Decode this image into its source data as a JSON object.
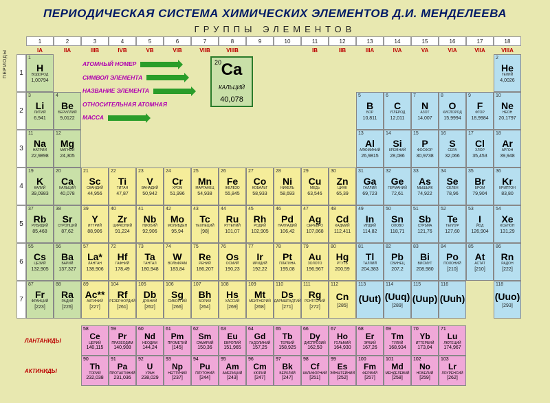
{
  "title": "ПЕРИОДИЧЕСКАЯ СИСТЕМА ХИМИЧЕСКИХ ЭЛЕМЕНТОВ Д.И. МЕНДЕЛЕЕВА",
  "subtitle": "ГРУППЫ ЭЛЕМЕНТОВ",
  "periods_label": "ПЕРИОДЫ",
  "group_numbers": [
    "1",
    "2",
    "3",
    "4",
    "5",
    "6",
    "7",
    "8",
    "9",
    "10",
    "11",
    "12",
    "13",
    "14",
    "15",
    "16",
    "17",
    "18"
  ],
  "group_labels": [
    "IA",
    "IIA",
    "IIIB",
    "IVB",
    "VB",
    "VIB",
    "VIIB",
    "VIIIB",
    "",
    "",
    "IB",
    "IIB",
    "IIIA",
    "IVA",
    "VA",
    "VIA",
    "VIIA",
    "VIIIA"
  ],
  "legend": [
    "АТОМНЫЙ НОМЕР",
    "СИМВОЛ ЭЛЕМЕНТА",
    "НАЗВАНИЕ ЭЛЕМЕНТА",
    "ОТНОСИТЕЛЬНАЯ АТОМНАЯ",
    "МАССА"
  ],
  "big": {
    "n": "20",
    "sym": "Ca",
    "name": "КАЛЬЦИЙ",
    "mass": "40,078"
  },
  "lan_label": "ЛАНТАНИДЫ",
  "act_label": "АКТИНИДЫ",
  "colors": {
    "s": "#f77272",
    "p": "#b6dff0",
    "d": "#f5ed9a",
    "f": "#f0a8d8",
    "g": "#c9e0a8"
  },
  "rows": [
    [
      {
        "k": "g",
        "n": "1",
        "s": "H",
        "m": "1,00794",
        "nm": "ВОДОРОД"
      },
      0,
      0,
      0,
      0,
      0,
      0,
      0,
      0,
      0,
      0,
      0,
      0,
      0,
      0,
      0,
      0,
      {
        "k": "p",
        "n": "2",
        "s": "He",
        "m": "4,0026",
        "nm": "ГЕЛИЙ"
      }
    ],
    [
      {
        "k": "g",
        "n": "3",
        "s": "Li",
        "m": "6,941",
        "nm": "ЛИТИЙ"
      },
      {
        "k": "g",
        "n": "4",
        "s": "Be",
        "m": "9,0122",
        "nm": "БЕРИЛЛИЙ"
      },
      0,
      0,
      0,
      0,
      0,
      0,
      0,
      0,
      0,
      0,
      {
        "k": "p",
        "n": "5",
        "s": "B",
        "m": "10,811",
        "nm": "БОР"
      },
      {
        "k": "p",
        "n": "6",
        "s": "C",
        "m": "12,011",
        "nm": "УГЛЕРОД"
      },
      {
        "k": "p",
        "n": "7",
        "s": "N",
        "m": "14,007",
        "nm": "АЗОТ"
      },
      {
        "k": "p",
        "n": "8",
        "s": "O",
        "m": "15,9994",
        "nm": "КИСЛОРОД"
      },
      {
        "k": "p",
        "n": "9",
        "s": "F",
        "m": "18,9984",
        "nm": "ФТОР"
      },
      {
        "k": "p",
        "n": "10",
        "s": "Ne",
        "m": "20,1797",
        "nm": "НЕОН"
      }
    ],
    [
      {
        "k": "g",
        "n": "11",
        "s": "Na",
        "m": "22,9898",
        "nm": "НАТРИЙ"
      },
      {
        "k": "g",
        "n": "12",
        "s": "Mg",
        "m": "24,305",
        "nm": "МАГНИЙ"
      },
      0,
      0,
      0,
      0,
      0,
      0,
      0,
      0,
      0,
      0,
      {
        "k": "p",
        "n": "13",
        "s": "Al",
        "m": "26,9815",
        "nm": "АЛЮМИНИЙ"
      },
      {
        "k": "p",
        "n": "14",
        "s": "Si",
        "m": "28,086",
        "nm": "КРЕМНИЙ"
      },
      {
        "k": "p",
        "n": "15",
        "s": "P",
        "m": "30,9738",
        "nm": "ФОСФОР"
      },
      {
        "k": "p",
        "n": "16",
        "s": "S",
        "m": "32,066",
        "nm": "СЕРА"
      },
      {
        "k": "p",
        "n": "17",
        "s": "Cl",
        "m": "35,453",
        "nm": "ХЛОР"
      },
      {
        "k": "p",
        "n": "18",
        "s": "Ar",
        "m": "39,948",
        "nm": "АРГОН"
      }
    ],
    [
      {
        "k": "g",
        "n": "19",
        "s": "K",
        "m": "39,0983",
        "nm": "КАЛИЙ"
      },
      {
        "k": "g",
        "n": "20",
        "s": "Ca",
        "m": "40,078",
        "nm": "КАЛЬЦИЙ"
      },
      {
        "k": "d",
        "n": "21",
        "s": "Sc",
        "m": "44,956",
        "nm": "СКАНДИЙ"
      },
      {
        "k": "d",
        "n": "22",
        "s": "Ti",
        "m": "47,87",
        "nm": "ТИТАН"
      },
      {
        "k": "d",
        "n": "23",
        "s": "V",
        "m": "50,942",
        "nm": "ВАНАДИЙ"
      },
      {
        "k": "d",
        "n": "24",
        "s": "Cr",
        "m": "51,996",
        "nm": "ХРОМ"
      },
      {
        "k": "d",
        "n": "25",
        "s": "Mn",
        "m": "54,938",
        "nm": "МАРГАНЕЦ"
      },
      {
        "k": "d",
        "n": "26",
        "s": "Fe",
        "m": "55,845",
        "nm": "ЖЕЛЕЗО"
      },
      {
        "k": "d",
        "n": "27",
        "s": "Co",
        "m": "58,933",
        "nm": "КОБАЛЬТ"
      },
      {
        "k": "d",
        "n": "28",
        "s": "Ni",
        "m": "58,693",
        "nm": "НИКЕЛЬ"
      },
      {
        "k": "d",
        "n": "29",
        "s": "Cu",
        "m": "63,546",
        "nm": "МЕДЬ"
      },
      {
        "k": "d",
        "n": "30",
        "s": "Zn",
        "m": "65,39",
        "nm": "ЦИНК"
      },
      {
        "k": "p",
        "n": "31",
        "s": "Ga",
        "m": "69,723",
        "nm": "ГАЛЛИЙ"
      },
      {
        "k": "p",
        "n": "32",
        "s": "Ge",
        "m": "72,61",
        "nm": "ГЕРМАНИЙ"
      },
      {
        "k": "p",
        "n": "33",
        "s": "As",
        "m": "74,922",
        "nm": "МЫШЬЯК"
      },
      {
        "k": "p",
        "n": "34",
        "s": "Se",
        "m": "78,96",
        "nm": "СЕЛЕН"
      },
      {
        "k": "p",
        "n": "35",
        "s": "Br",
        "m": "79,904",
        "nm": "БРОМ"
      },
      {
        "k": "p",
        "n": "36",
        "s": "Kr",
        "m": "83,80",
        "nm": "КРИПТОН"
      }
    ],
    [
      {
        "k": "g",
        "n": "37",
        "s": "Rb",
        "m": "85,468",
        "nm": "РУБИДИЙ"
      },
      {
        "k": "g",
        "n": "38",
        "s": "Sr",
        "m": "87,62",
        "nm": "СТРОНЦИЙ"
      },
      {
        "k": "d",
        "n": "39",
        "s": "Y",
        "m": "88,906",
        "nm": "ИТТРИЙ"
      },
      {
        "k": "d",
        "n": "40",
        "s": "Zr",
        "m": "91,224",
        "nm": "ЦИРКОНИЙ"
      },
      {
        "k": "d",
        "n": "41",
        "s": "Nb",
        "m": "92,906",
        "nm": "НИОБИЙ"
      },
      {
        "k": "d",
        "n": "42",
        "s": "Mo",
        "m": "95,94",
        "nm": "МОЛИБДЕН"
      },
      {
        "k": "d",
        "n": "43",
        "s": "Tc",
        "m": "[98]",
        "nm": "ТЕХНЕЦИЙ"
      },
      {
        "k": "d",
        "n": "44",
        "s": "Ru",
        "m": "101,07",
        "nm": "РУТЕНИЙ"
      },
      {
        "k": "d",
        "n": "45",
        "s": "Rh",
        "m": "102,905",
        "nm": "РОДИЙ"
      },
      {
        "k": "d",
        "n": "46",
        "s": "Pd",
        "m": "106,42",
        "nm": "ПАЛЛАДИЙ"
      },
      {
        "k": "d",
        "n": "47",
        "s": "Ag",
        "m": "107,868",
        "nm": "СЕРЕБРО"
      },
      {
        "k": "d",
        "n": "48",
        "s": "Cd",
        "m": "112,411",
        "nm": "КАДМИЙ"
      },
      {
        "k": "p",
        "n": "49",
        "s": "In",
        "m": "114,82",
        "nm": "ИНДИЙ"
      },
      {
        "k": "p",
        "n": "50",
        "s": "Sn",
        "m": "118,71",
        "nm": "ОЛОВО"
      },
      {
        "k": "p",
        "n": "51",
        "s": "Sb",
        "m": "121,76",
        "nm": "СУРЬМА"
      },
      {
        "k": "p",
        "n": "52",
        "s": "Te",
        "m": "127,60",
        "nm": "ТЕЛЛУР"
      },
      {
        "k": "p",
        "n": "53",
        "s": "I",
        "m": "126,904",
        "nm": "ЙОД"
      },
      {
        "k": "p",
        "n": "54",
        "s": "Xe",
        "m": "131,29",
        "nm": "КСЕНОН"
      }
    ],
    [
      {
        "k": "g",
        "n": "55",
        "s": "Cs",
        "m": "132,905",
        "nm": "ЦЕЗИЙ"
      },
      {
        "k": "g",
        "n": "56",
        "s": "Ba",
        "m": "137,327",
        "nm": "БАРИЙ"
      },
      {
        "k": "d",
        "n": "57",
        "s": "La*",
        "m": "138,906",
        "nm": "ЛАНТАН"
      },
      {
        "k": "d",
        "n": "72",
        "s": "Hf",
        "m": "178,49",
        "nm": "ГАФНИЙ"
      },
      {
        "k": "d",
        "n": "73",
        "s": "Ta",
        "m": "180,948",
        "nm": "ТАНТАЛ"
      },
      {
        "k": "d",
        "n": "74",
        "s": "W",
        "m": "183,84",
        "nm": "ВОЛЬФРАМ"
      },
      {
        "k": "d",
        "n": "75",
        "s": "Re",
        "m": "186,207",
        "nm": "РЕНИЙ"
      },
      {
        "k": "d",
        "n": "76",
        "s": "Os",
        "m": "190,23",
        "nm": "ОСМИЙ"
      },
      {
        "k": "d",
        "n": "77",
        "s": "Ir",
        "m": "192,22",
        "nm": "ИРИДИЙ"
      },
      {
        "k": "d",
        "n": "78",
        "s": "Pt",
        "m": "195,08",
        "nm": "ПЛАТИНА"
      },
      {
        "k": "d",
        "n": "79",
        "s": "Au",
        "m": "196,967",
        "nm": "ЗОЛОТО"
      },
      {
        "k": "d",
        "n": "80",
        "s": "Hg",
        "m": "200,59",
        "nm": "РТУТЬ"
      },
      {
        "k": "p",
        "n": "81",
        "s": "Tl",
        "m": "204,383",
        "nm": "ТАЛЛИЙ"
      },
      {
        "k": "p",
        "n": "82",
        "s": "Pb",
        "m": "207,2",
        "nm": "СВИНЕЦ"
      },
      {
        "k": "p",
        "n": "83",
        "s": "Bi",
        "m": "208,980",
        "nm": "ВИСМУТ"
      },
      {
        "k": "p",
        "n": "84",
        "s": "Po",
        "m": "[210]",
        "nm": "ПОЛОНИЙ"
      },
      {
        "k": "p",
        "n": "85",
        "s": "At",
        "m": "[210]",
        "nm": "АСТАТ"
      },
      {
        "k": "p",
        "n": "86",
        "s": "Rn",
        "m": "[222]",
        "nm": "РАДОН"
      }
    ],
    [
      {
        "k": "g",
        "n": "87",
        "s": "Fr",
        "m": "[223]",
        "nm": "ФРАНЦИЙ"
      },
      {
        "k": "g",
        "n": "88",
        "s": "Ra",
        "m": "[226]",
        "nm": "РАДИЙ"
      },
      {
        "k": "d",
        "n": "89",
        "s": "Ac**",
        "m": "[227]",
        "nm": "АКТИНИЙ"
      },
      {
        "k": "d",
        "n": "104",
        "s": "Rf",
        "m": "[261]",
        "nm": "РЕЗЕРФОРДИЙ"
      },
      {
        "k": "d",
        "n": "105",
        "s": "Db",
        "m": "[262]",
        "nm": "ДУБНИЙ"
      },
      {
        "k": "d",
        "n": "106",
        "s": "Sg",
        "m": "[266]",
        "nm": "СИБОРГИЙ"
      },
      {
        "k": "d",
        "n": "107",
        "s": "Bh",
        "m": "[264]",
        "nm": "БОРИЙ"
      },
      {
        "k": "d",
        "n": "108",
        "s": "Hs",
        "m": "[269]",
        "nm": "ХАССИЙ"
      },
      {
        "k": "d",
        "n": "109",
        "s": "Mt",
        "m": "[268]",
        "nm": "МЕЙТНЕРИЙ"
      },
      {
        "k": "d",
        "n": "110",
        "s": "Ds",
        "m": "[271]",
        "nm": "ДАРМШТАДТИЙ"
      },
      {
        "k": "d",
        "n": "111",
        "s": "Rg",
        "m": "[272]",
        "nm": "РЕНТГЕНИЙ"
      },
      {
        "k": "d",
        "n": "112",
        "s": "Cn",
        "m": "[285]",
        "nm": ""
      },
      {
        "k": "p",
        "n": "113",
        "s": "(Uut)",
        "m": "",
        "nm": ""
      },
      {
        "k": "p",
        "n": "114",
        "s": "(Uuq)",
        "m": "[289]",
        "nm": ""
      },
      {
        "k": "p",
        "n": "115",
        "s": "(Uup)",
        "m": "",
        "nm": ""
      },
      {
        "k": "p",
        "n": "116",
        "s": "(Uuh)",
        "m": "",
        "nm": ""
      },
      0,
      {
        "k": "p",
        "n": "118",
        "s": "(Uuo)",
        "m": "[293]",
        "nm": ""
      }
    ]
  ],
  "lan": [
    {
      "n": "58",
      "s": "Ce",
      "m": "140,115",
      "nm": "ЦЕРИЙ"
    },
    {
      "n": "59",
      "s": "Pr",
      "m": "140,908",
      "nm": "ПРАЗЕОДИМ"
    },
    {
      "n": "60",
      "s": "Nd",
      "m": "144,24",
      "nm": "НЕОДИМ"
    },
    {
      "n": "61",
      "s": "Pm",
      "m": "[145]",
      "nm": "ПРОМЕТИЙ"
    },
    {
      "n": "62",
      "s": "Sm",
      "m": "150,36",
      "nm": "САМАРИЙ"
    },
    {
      "n": "63",
      "s": "Eu",
      "m": "151,965",
      "nm": "ЕВРОПИЙ"
    },
    {
      "n": "64",
      "s": "Gd",
      "m": "157,25",
      "nm": "ГАДОЛИНИЙ"
    },
    {
      "n": "65",
      "s": "Tb",
      "m": "158,925",
      "nm": "ТЕРБИЙ"
    },
    {
      "n": "66",
      "s": "Dy",
      "m": "162,50",
      "nm": "ДИСПРОЗИЙ"
    },
    {
      "n": "67",
      "s": "Ho",
      "m": "164,930",
      "nm": "ГОЛЬМИЙ"
    },
    {
      "n": "68",
      "s": "Er",
      "m": "167,26",
      "nm": "ЭРБИЙ"
    },
    {
      "n": "69",
      "s": "Tm",
      "m": "168,934",
      "nm": "ТУЛИЙ"
    },
    {
      "n": "70",
      "s": "Yb",
      "m": "173,04",
      "nm": "ИТТЕРБИЙ"
    },
    {
      "n": "71",
      "s": "Lu",
      "m": "174,967",
      "nm": "ЛЮТЕЦИЙ"
    }
  ],
  "act": [
    {
      "n": "90",
      "s": "Th",
      "m": "232,038",
      "nm": "ТОРИЙ"
    },
    {
      "n": "91",
      "s": "Pa",
      "m": "231,036",
      "nm": "ПРОТАКТИНИЙ"
    },
    {
      "n": "92",
      "s": "U",
      "m": "238,029",
      "nm": "УРАН"
    },
    {
      "n": "93",
      "s": "Np",
      "m": "[237]",
      "nm": "НЕПТУНИЙ"
    },
    {
      "n": "94",
      "s": "Pu",
      "m": "[244]",
      "nm": "ПЛУТОНИЙ"
    },
    {
      "n": "95",
      "s": "Am",
      "m": "[243]",
      "nm": "АМЕРИЦИЙ"
    },
    {
      "n": "96",
      "s": "Cm",
      "m": "[247]",
      "nm": "КЮРИЙ"
    },
    {
      "n": "97",
      "s": "Bk",
      "m": "[247]",
      "nm": "БЕРКЛИЙ"
    },
    {
      "n": "98",
      "s": "Cf",
      "m": "[251]",
      "nm": "КАЛИФОРНИЙ"
    },
    {
      "n": "99",
      "s": "Es",
      "m": "[252]",
      "nm": "ЭЙНШТЕЙНИЙ"
    },
    {
      "n": "100",
      "s": "Fm",
      "m": "[257]",
      "nm": "ФЕРМИЙ"
    },
    {
      "n": "101",
      "s": "Md",
      "m": "[258]",
      "nm": "МЕНДЕЛЕВИЙ"
    },
    {
      "n": "102",
      "s": "No",
      "m": "[259]",
      "nm": "НОБЕЛИЙ"
    },
    {
      "n": "103",
      "s": "Lr",
      "m": "[262]",
      "nm": "ЛОУРЕНСИЙ"
    }
  ]
}
